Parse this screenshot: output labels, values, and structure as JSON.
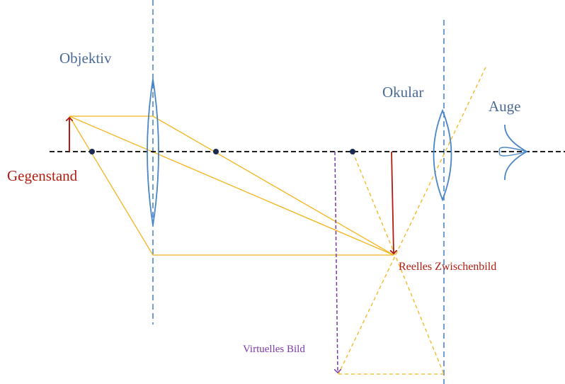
{
  "labels": {
    "objective": "Objektiv",
    "eyepiece": "Okular",
    "eye": "Auge",
    "object": "Gegenstand",
    "real_image": "Reelles Zwischenbild",
    "virtual_image": "Virtuelles Bild"
  },
  "colors": {
    "optical_axis": "#000000",
    "lens": "#4a86c6",
    "label_blue": "#4a6a96",
    "ray": "#f4b41c",
    "object_arrow": "#b01c10",
    "virtual_image": "#7a3aa6",
    "focal_point": "#1a2a50"
  }
}
